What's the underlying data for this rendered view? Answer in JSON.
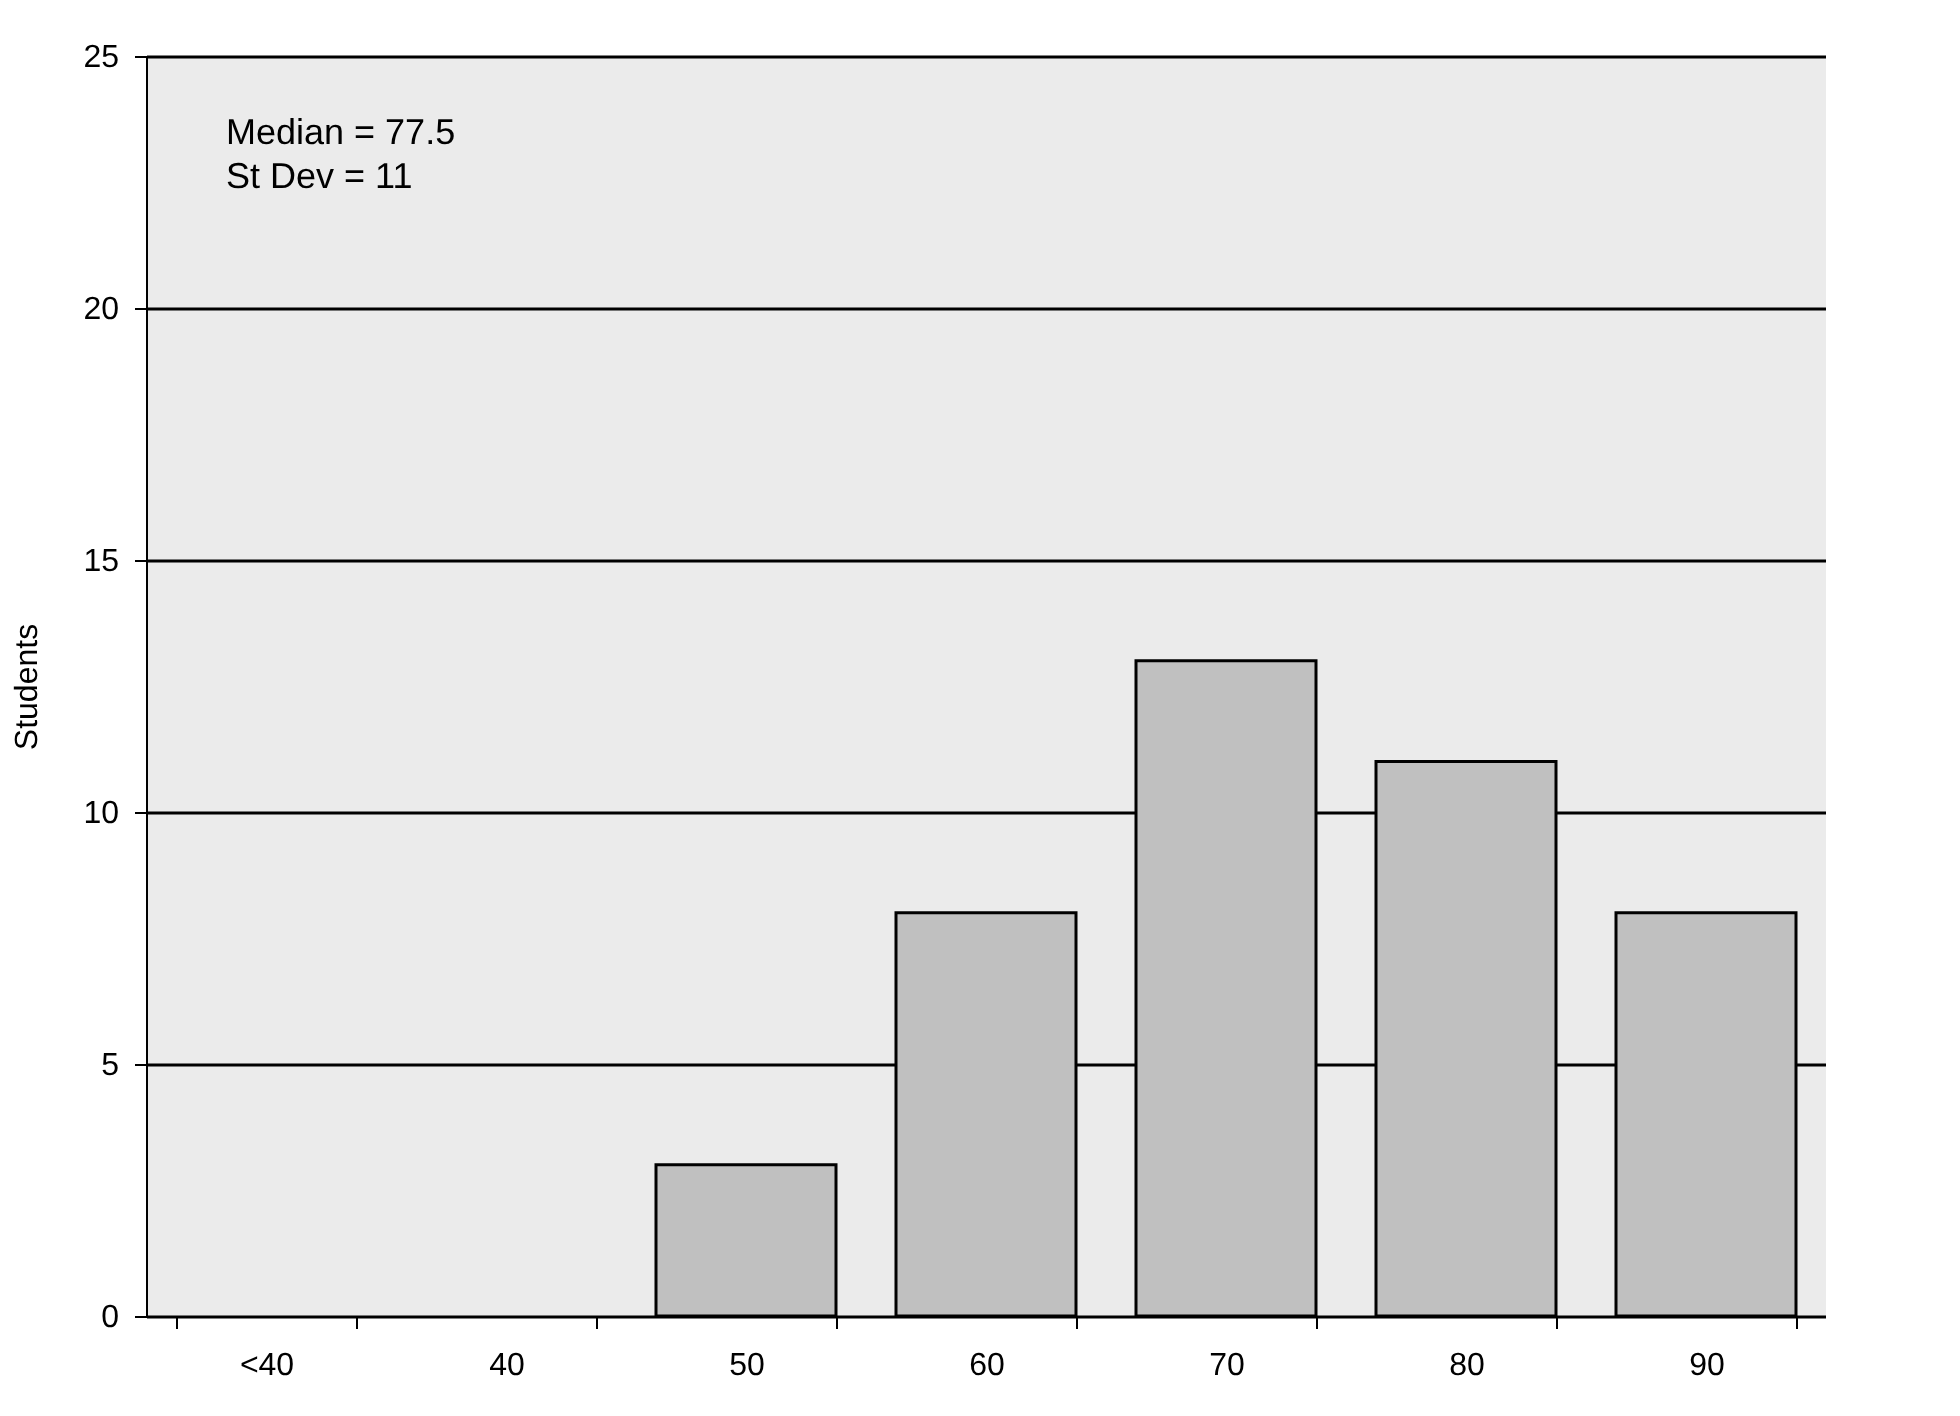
{
  "chart_data": {
    "type": "bar",
    "ylabel": "Students",
    "categories": [
      "<40",
      "40",
      "50",
      "60",
      "70",
      "80",
      "90"
    ],
    "values": [
      0,
      0,
      3,
      8,
      13,
      11,
      8
    ],
    "color": "#c0c0c0",
    "ylim": [
      0,
      25
    ],
    "yticks": [
      0,
      5,
      10,
      15,
      20,
      25
    ],
    "grid": "y",
    "annotations": [
      "Median = 77.5",
      "St Dev  = 11"
    ]
  }
}
